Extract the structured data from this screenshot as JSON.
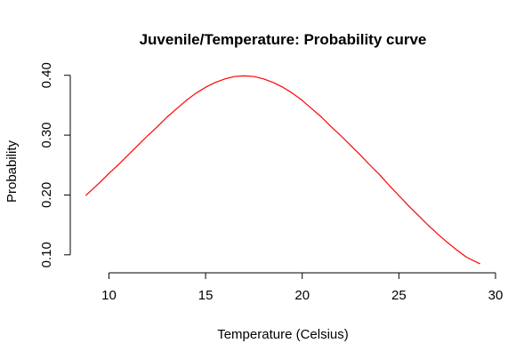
{
  "chart_data": {
    "type": "line",
    "title": "Juvenile/Temperature: Probability curve",
    "xlabel": "Temperature (Celsius)",
    "ylabel": "Probability",
    "xlim": [
      8,
      30
    ],
    "ylim": [
      0.07,
      0.41
    ],
    "x_ticks": [
      10,
      15,
      20,
      25,
      30
    ],
    "x_tick_labels": [
      "10",
      "15",
      "20",
      "25",
      "30"
    ],
    "y_ticks": [
      0.1,
      0.2,
      0.3,
      0.4
    ],
    "y_tick_labels": [
      "0.10",
      "0.20",
      "0.30",
      "0.40"
    ],
    "grid": false,
    "legend": null,
    "series": [
      {
        "color": "#ff0000",
        "x": [
          8.8,
          9.5,
          10,
          10.5,
          11,
          11.5,
          12,
          12.5,
          13,
          13.5,
          14,
          14.5,
          15,
          15.5,
          16,
          16.5,
          17,
          17.5,
          18,
          18.5,
          19,
          19.5,
          20,
          20.5,
          21,
          21.5,
          22,
          22.5,
          23,
          23.5,
          24,
          24.5,
          25,
          25.5,
          26,
          26.5,
          27,
          27.5,
          28,
          28.5,
          29.2
        ],
        "y": [
          0.199,
          0.22,
          0.236,
          0.251,
          0.267,
          0.283,
          0.299,
          0.314,
          0.33,
          0.344,
          0.358,
          0.37,
          0.38,
          0.388,
          0.394,
          0.398,
          0.399,
          0.398,
          0.394,
          0.388,
          0.38,
          0.37,
          0.358,
          0.344,
          0.33,
          0.314,
          0.299,
          0.283,
          0.267,
          0.25,
          0.234,
          0.216,
          0.199,
          0.182,
          0.166,
          0.15,
          0.135,
          0.121,
          0.108,
          0.096,
          0.085
        ]
      }
    ]
  }
}
